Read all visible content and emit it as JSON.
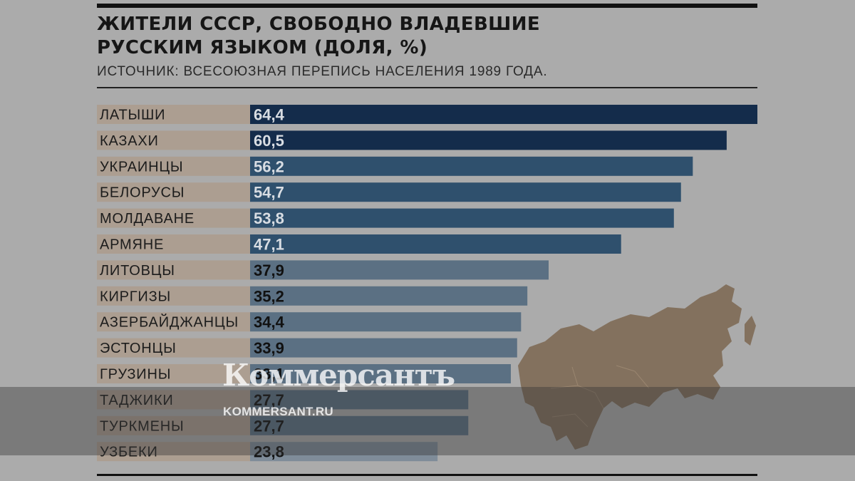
{
  "chart_data": {
    "type": "bar",
    "orientation": "horizontal",
    "title": "ЖИТЕЛИ СССР, СВОБОДНО ВЛАДЕВШИЕ РУССКИМ ЯЗЫКОМ (ДОЛЯ, %)",
    "title_lines": [
      "ЖИТЕЛИ СССР, СВОБОДНО ВЛАДЕВШИЕ",
      "РУССКИМ ЯЗЫКОМ (ДОЛЯ, %)"
    ],
    "subtitle": "ИСТОЧНИК: ВСЕСОЮЗНАЯ ПЕРЕПИСЬ НАСЕЛЕНИЯ 1989 ГОДА.",
    "categories": [
      "ЛАТЫШИ",
      "КАЗАХИ",
      "УКРАИНЦЫ",
      "БЕЛОРУСЫ",
      "МОЛДАВАНЕ",
      "АРМЯНЕ",
      "ЛИТОВЦЫ",
      "КИРГИЗЫ",
      "АЗЕРБАЙДЖАНЦЫ",
      "ЭСТОНЦЫ",
      "ГРУЗИНЫ",
      "ТАДЖИКИ",
      "ТУРКМЕНЫ",
      "УЗБЕКИ"
    ],
    "values": [
      64.4,
      60.5,
      56.2,
      54.7,
      53.8,
      47.1,
      37.9,
      35.2,
      34.4,
      33.9,
      33.1,
      27.7,
      27.7,
      23.8
    ],
    "value_labels": [
      "64,4",
      "60,5",
      "56,2",
      "54,7",
      "53,8",
      "47,1",
      "37,9",
      "35,2",
      "34,4",
      "33,9",
      "33,1",
      "27,7",
      "27,7",
      "23,8"
    ],
    "xlim": [
      0,
      64.4
    ],
    "grid": false,
    "legend": "none",
    "colors": {
      "category_band": "#ac9e91",
      "bar_dark": "#142c4b",
      "bar_mid": "#2f506d",
      "bar_light": "#5b7083",
      "bar_lightest": "#7f8c99",
      "label_light": "#d8dde3",
      "label_dark": "#111111"
    }
  },
  "watermark": {
    "brand": "Коммерсантъ",
    "url": "KOMMERSANT.RU"
  }
}
